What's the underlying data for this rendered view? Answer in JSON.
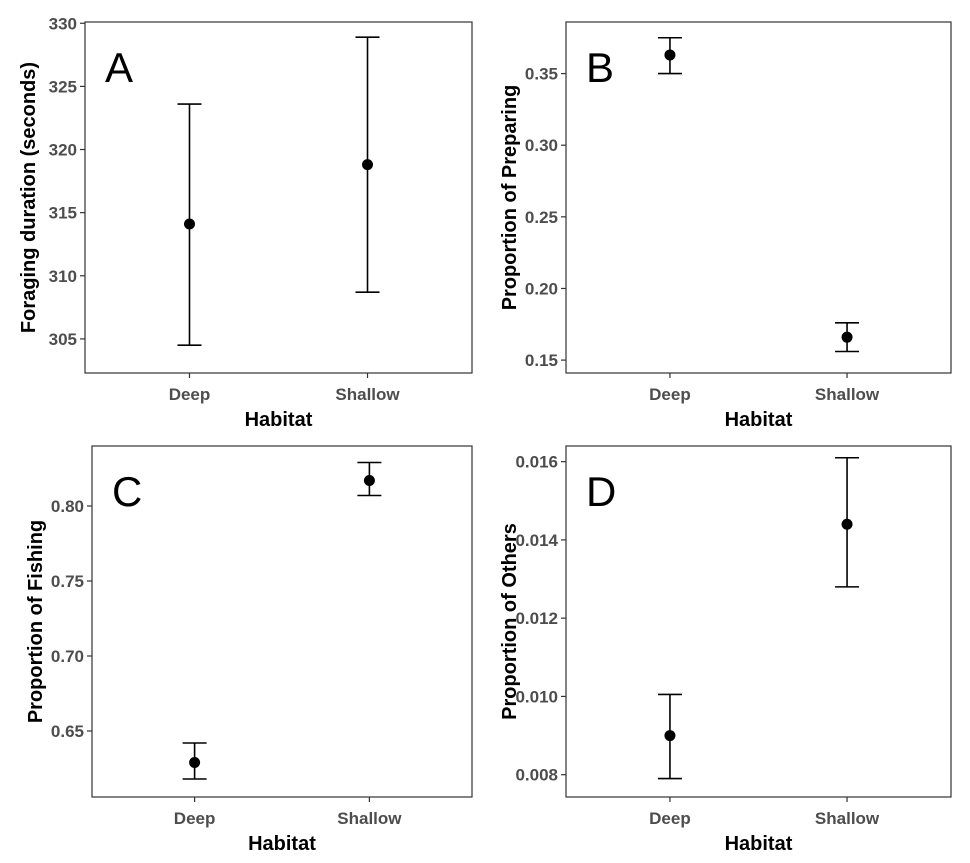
{
  "chart_data": [
    {
      "panel_label": "A",
      "type": "scatter",
      "xlabel": "Habitat",
      "ylabel": "Foraging duration (seconds)",
      "categories": [
        "Deep",
        "Shallow"
      ],
      "values": [
        314.1,
        318.8
      ],
      "error_low": [
        304.5,
        308.7
      ],
      "error_high": [
        323.6,
        328.9
      ],
      "yticks": [
        "305",
        "310",
        "315",
        "320",
        "325",
        "330"
      ],
      "ylim": [
        302.3,
        330.1
      ],
      "grid": false
    },
    {
      "panel_label": "B",
      "type": "scatter",
      "xlabel": "Habitat",
      "ylabel": "Proportion of Preparing",
      "categories": [
        "Deep",
        "Shallow"
      ],
      "values": [
        0.363,
        0.166
      ],
      "error_low": [
        0.35,
        0.156
      ],
      "error_high": [
        0.375,
        0.176
      ],
      "yticks": [
        "0.15",
        "0.20",
        "0.25",
        "0.30",
        "0.35"
      ],
      "ylim": [
        0.141,
        0.386
      ],
      "grid": false
    },
    {
      "panel_label": "C",
      "type": "scatter",
      "xlabel": "Habitat",
      "ylabel": "Proportion of Fishing",
      "categories": [
        "Deep",
        "Shallow"
      ],
      "values": [
        0.629,
        0.817
      ],
      "error_low": [
        0.618,
        0.807
      ],
      "error_high": [
        0.642,
        0.829
      ],
      "yticks": [
        "0.65",
        "0.70",
        "0.75",
        "0.80"
      ],
      "ylim": [
        0.606,
        0.84
      ],
      "grid": false
    },
    {
      "panel_label": "D",
      "type": "scatter",
      "xlabel": "Habitat",
      "ylabel": "Proportion of Others",
      "categories": [
        "Deep",
        "Shallow"
      ],
      "values": [
        0.009,
        0.0144
      ],
      "error_low": [
        0.0079,
        0.0128
      ],
      "error_high": [
        0.01005,
        0.0161
      ],
      "yticks": [
        "0.008",
        "0.010",
        "0.012",
        "0.014",
        "0.016"
      ],
      "ylim": [
        0.00743,
        0.0164
      ],
      "grid": false
    }
  ]
}
